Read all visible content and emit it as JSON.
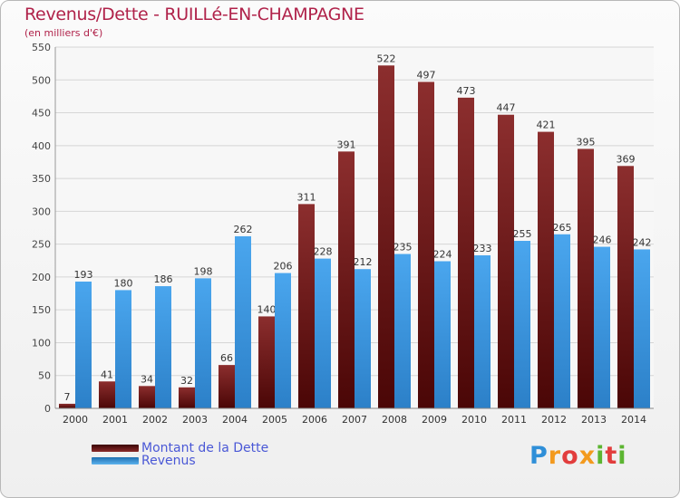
{
  "title": "Revenus/Dette - RUILLé-EN-CHAMPAGNE",
  "subtitle": "(en milliers d'€)",
  "logo": "Proxiti",
  "colors": {
    "dette": "#7a1a1a",
    "revenus": "#3d97de",
    "title": "#b0224a",
    "legend_text": "#4a58d6",
    "grid": "#d6d6d6"
  },
  "chart_data": {
    "type": "bar",
    "categories": [
      "2000",
      "2001",
      "2002",
      "2003",
      "2004",
      "2005",
      "2006",
      "2007",
      "2008",
      "2009",
      "2010",
      "2011",
      "2012",
      "2013",
      "2014"
    ],
    "series": [
      {
        "name": "Montant de la Dette",
        "values": [
          7,
          41,
          34,
          32,
          66,
          140,
          311,
          391,
          522,
          497,
          473,
          447,
          421,
          395,
          369
        ]
      },
      {
        "name": "Revenus",
        "values": [
          193,
          180,
          186,
          198,
          262,
          206,
          228,
          212,
          235,
          224,
          233,
          255,
          265,
          246,
          242
        ]
      }
    ],
    "ylim": [
      0,
      550
    ],
    "yticks": [
      0,
      50,
      100,
      150,
      200,
      250,
      300,
      350,
      400,
      450,
      500,
      550
    ],
    "grid": true,
    "legend_position": "bottom-left"
  }
}
